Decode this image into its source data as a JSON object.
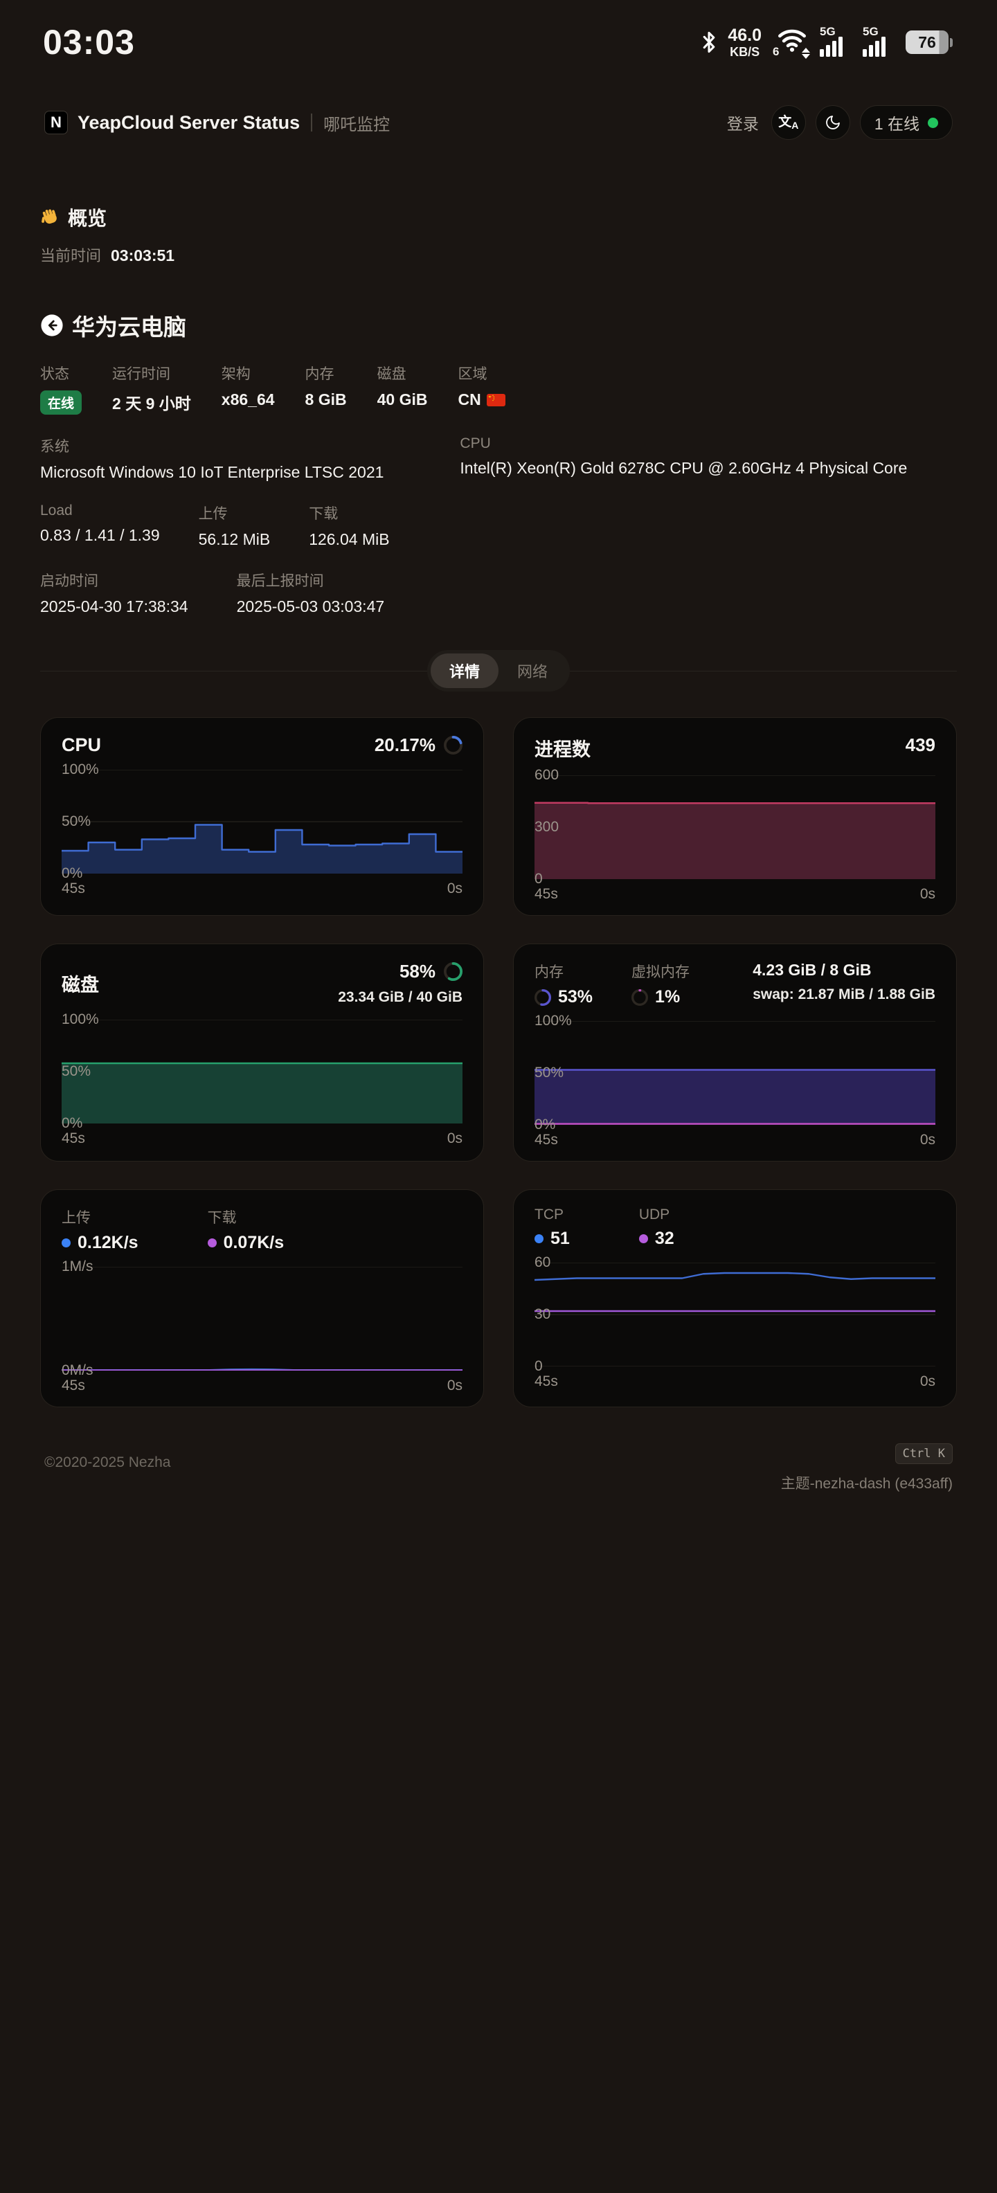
{
  "statusbar": {
    "time": "03:03",
    "net_speed_value": "46.0",
    "net_speed_unit": "KB/S",
    "wifi_gen": "6",
    "sig1": "5G",
    "sig2": "5G",
    "battery": "76"
  },
  "header": {
    "logo": "N",
    "title": "YeapCloud Server Status",
    "subtitle": "哪吒监控",
    "login": "登录",
    "online_count": "1 在线",
    "online_color": "#22c55e"
  },
  "overview": {
    "greeting": "概览",
    "time_label": "当前时间",
    "time_value": "03:03:51"
  },
  "server": {
    "name": "华为云电脑",
    "status_label": "状态",
    "status_value": "在线",
    "uptime_label": "运行时间",
    "uptime_value": "2 天 9 小时",
    "arch_label": "架构",
    "arch_value": "x86_64",
    "mem_label": "内存",
    "mem_value": "8 GiB",
    "disk_label": "磁盘",
    "disk_value": "40 GiB",
    "region_label": "区域",
    "region_value": "CN",
    "system_label": "系统",
    "system_value": "Microsoft Windows 10 IoT Enterprise LTSC 2021",
    "cpu_label": "CPU",
    "cpu_value": "Intel(R) Xeon(R) Gold 6278C CPU @ 2.60GHz 4 Physical Core",
    "load_label": "Load",
    "load_value": "0.83 / 1.41 / 1.39",
    "upload_label": "上传",
    "upload_value": "56.12 MiB",
    "download_label": "下载",
    "download_value": "126.04 MiB",
    "boot_label": "启动时间",
    "boot_value": "2025-04-30 17:38:34",
    "report_label": "最后上报时间",
    "report_value": "2025-05-03 03:03:47"
  },
  "tabs": {
    "detail": "详情",
    "network": "网络"
  },
  "chart_data": [
    {
      "id": "cpu",
      "type": "step-area",
      "title": "CPU",
      "value": "20.17%",
      "ring": {
        "pct": 20.17,
        "color": "#4a79dd"
      },
      "ymax": 100,
      "yticks": [
        {
          "v": 100,
          "label": "100%"
        },
        {
          "v": 50,
          "label": "50%"
        },
        {
          "v": 0,
          "label": "0%"
        }
      ],
      "x_start": "45s",
      "x_end": "0s",
      "series": [
        {
          "name": "cpu",
          "stroke": "#3f6cd3",
          "fill": "#1b2a50",
          "values": [
            22,
            30,
            23,
            33,
            34,
            47,
            23,
            21,
            42,
            28,
            27,
            28,
            29,
            38,
            21,
            20.17
          ]
        }
      ]
    },
    {
      "id": "process",
      "type": "step-area",
      "title": "进程数",
      "value": "439",
      "ymax": 600,
      "yticks": [
        {
          "v": 600,
          "label": "600"
        },
        {
          "v": 300,
          "label": "300"
        },
        {
          "v": 0,
          "label": "0"
        }
      ],
      "x_start": "45s",
      "x_end": "0s",
      "series": [
        {
          "name": "processes",
          "stroke": "#c23b62",
          "fill": "#4b1f2f",
          "values": [
            441,
            441,
            439,
            439,
            439,
            439,
            439,
            439,
            439,
            439,
            439,
            439,
            439,
            439,
            439,
            439
          ]
        }
      ]
    },
    {
      "id": "disk",
      "type": "step-area",
      "title": "磁盘",
      "value": "58%",
      "sub": "23.34 GiB / 40 GiB",
      "ring": {
        "pct": 58,
        "color": "#27a06c"
      },
      "ymax": 100,
      "yticks": [
        {
          "v": 100,
          "label": "100%"
        },
        {
          "v": 50,
          "label": "50%"
        },
        {
          "v": 0,
          "label": "0%"
        }
      ],
      "x_start": "45s",
      "x_end": "0s",
      "series": [
        {
          "name": "disk",
          "stroke": "#27a06c",
          "fill": "#174134",
          "values": [
            58,
            58,
            58,
            58,
            58,
            58,
            58,
            58,
            58,
            58,
            58,
            58,
            58,
            58,
            58,
            58
          ]
        }
      ]
    },
    {
      "id": "memory",
      "type": "step-area",
      "stats": [
        {
          "label": "内存",
          "value": "53%",
          "ring": {
            "pct": 53,
            "color": "#5a55cf"
          }
        },
        {
          "label": "虚拟内存",
          "value": "1%",
          "ring": {
            "pct": 1,
            "color": "#bf4ec0"
          }
        }
      ],
      "line1": "4.23 GiB / 8 GiB",
      "line2": "swap: 21.87 MiB / 1.88 GiB",
      "ymax": 100,
      "yticks": [
        {
          "v": 100,
          "label": "100%"
        },
        {
          "v": 50,
          "label": "50%"
        },
        {
          "v": 0,
          "label": "0%"
        }
      ],
      "x_start": "45s",
      "x_end": "0s",
      "series": [
        {
          "name": "mem",
          "stroke": "#5a55cf",
          "fill": "#2a2258",
          "values": [
            53,
            53,
            53,
            53,
            53,
            53,
            53,
            53,
            53,
            53,
            53,
            53,
            53,
            53,
            53,
            53
          ]
        },
        {
          "name": "swap",
          "stroke": "#bf4ec0",
          "fill": null,
          "values": [
            1,
            1,
            1,
            1,
            1,
            1,
            1,
            1,
            1,
            1,
            1,
            1,
            1,
            1,
            1,
            1
          ]
        }
      ]
    },
    {
      "id": "network",
      "type": "line",
      "stats": [
        {
          "label": "上传",
          "value": "0.12K/s",
          "dot": "#3b82f6"
        },
        {
          "label": "下载",
          "value": "0.07K/s",
          "dot": "#b65cdd"
        }
      ],
      "ymax": 1,
      "yticks": [
        {
          "v": 1,
          "label": "1M/s"
        },
        {
          "v": 0,
          "label": "0M/s"
        }
      ],
      "x_start": "45s",
      "x_end": "0s",
      "series": [
        {
          "name": "upload",
          "stroke": "#3f76d8",
          "fill": null,
          "values": [
            0.005,
            0.005,
            0.005,
            0.005,
            0.005,
            0.005,
            0.005,
            0.005,
            0.011,
            0.013,
            0.011,
            0.005,
            0.005,
            0.005,
            0.005,
            0.005,
            0.005,
            0.005,
            0.005,
            0.005
          ]
        },
        {
          "name": "download",
          "stroke": "#a158d8",
          "fill": null,
          "values": [
            0.004,
            0.004,
            0.004,
            0.004,
            0.004,
            0.004,
            0.004,
            0.004,
            0.004,
            0.004,
            0.004,
            0.004,
            0.004,
            0.004,
            0.004,
            0.004,
            0.004,
            0.004,
            0.004,
            0.004
          ]
        }
      ]
    },
    {
      "id": "connections",
      "type": "line",
      "stats": [
        {
          "label": "TCP",
          "value": "51",
          "dot": "#3b82f6"
        },
        {
          "label": "UDP",
          "value": "32",
          "dot": "#b65cdd"
        }
      ],
      "ymax": 60,
      "yticks": [
        {
          "v": 60,
          "label": "60"
        },
        {
          "v": 30,
          "label": "30"
        },
        {
          "v": 0,
          "label": "0"
        }
      ],
      "x_start": "45s",
      "x_end": "0s",
      "series": [
        {
          "name": "tcp",
          "stroke": "#3f6cd3",
          "fill": null,
          "values": [
            50,
            50.5,
            51,
            51,
            51,
            51,
            51,
            51,
            53.5,
            54,
            54,
            54,
            54,
            53.5,
            51.5,
            50.5,
            51,
            51,
            51,
            51
          ]
        },
        {
          "name": "udp",
          "stroke": "#a158d8",
          "fill": null,
          "values": [
            32,
            32,
            32,
            32,
            32,
            32,
            32,
            32,
            32,
            32,
            32,
            32,
            32,
            32,
            32,
            32,
            32,
            32,
            32,
            32
          ]
        }
      ]
    }
  ],
  "footer": {
    "copyright": "©2020-2025 Nezha",
    "shortcut": "Ctrl K",
    "theme": "主题-nezha-dash (e433aff)"
  }
}
